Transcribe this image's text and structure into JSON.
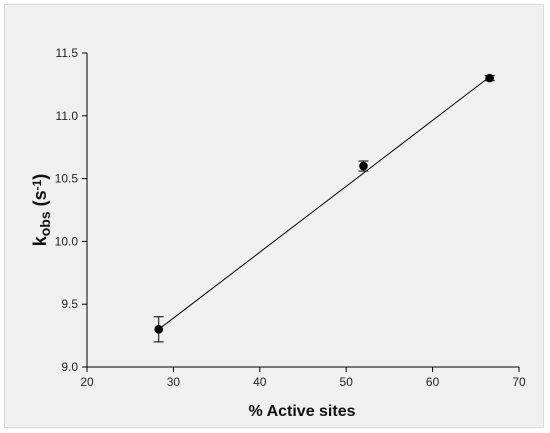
{
  "chart_data": {
    "type": "scatter",
    "title": "",
    "xlabel": "% Active sites",
    "ylabel": {
      "main": "k",
      "subscript": "obs",
      "unit_open": " (s",
      "unit_exponent": "-1",
      "unit_close": ")"
    },
    "xlim": [
      20,
      70
    ],
    "ylim": [
      9.0,
      11.5
    ],
    "xticks": [
      20,
      30,
      40,
      50,
      60,
      70
    ],
    "yticks": [
      9.0,
      9.5,
      10.0,
      10.5,
      11.0,
      11.5
    ],
    "xtick_labels": [
      "20",
      "30",
      "40",
      "50",
      "60",
      "70"
    ],
    "ytick_labels": [
      "9.0",
      "9.5",
      "10.0",
      "10.5",
      "11.0",
      "11.5"
    ],
    "grid": false,
    "points": [
      {
        "x": 28.3,
        "y": 9.3,
        "error": 0.1
      },
      {
        "x": 52.0,
        "y": 10.6,
        "error": 0.04
      },
      {
        "x": 66.6,
        "y": 11.3,
        "error": 0.02
      }
    ],
    "fit_line": {
      "x": [
        28.3,
        66.6
      ],
      "y": [
        9.3,
        11.31
      ]
    },
    "marker_color": "#000000",
    "line_color": "#000000"
  }
}
